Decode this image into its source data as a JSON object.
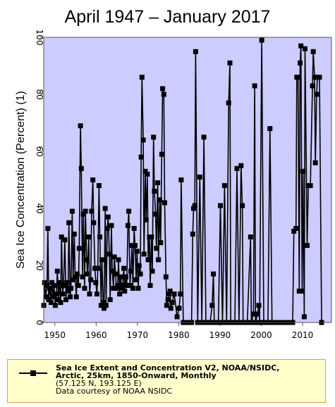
{
  "title": "April 1947 – January 2017",
  "chart_data": {
    "type": "line",
    "ylabel": "Sea Ice Concentration (Percent) (1)",
    "xlabel": "",
    "xlim": [
      1947.3,
      2017.0
    ],
    "ylim": [
      0,
      100
    ],
    "x_ticks": [
      1950,
      1960,
      1970,
      1980,
      1990,
      2000,
      2010
    ],
    "y_ticks": [
      0,
      20,
      40,
      60,
      80,
      100
    ],
    "grid": false,
    "plot_background": "#ccccff",
    "line_color": "#000000",
    "legend_position": "bottom",
    "series": [
      {
        "name": "Sea Ice Extent and Concentration V2, NOAA/NSIDC, Arctic, 25km, 1850-Onward, Monthly",
        "points": [
          [
            1947.3,
            6
          ],
          [
            1947.5,
            14
          ],
          [
            1947.8,
            9
          ],
          [
            1948.1,
            13
          ],
          [
            1948.3,
            33
          ],
          [
            1948.5,
            8
          ],
          [
            1948.8,
            12
          ],
          [
            1949.1,
            7
          ],
          [
            1949.3,
            14
          ],
          [
            1949.6,
            9
          ],
          [
            1949.8,
            13
          ],
          [
            1950.1,
            6
          ],
          [
            1950.4,
            10
          ],
          [
            1950.6,
            18
          ],
          [
            1950.9,
            8
          ],
          [
            1951.1,
            14
          ],
          [
            1951.4,
            7
          ],
          [
            1951.6,
            30
          ],
          [
            1951.9,
            10
          ],
          [
            1952.1,
            13
          ],
          [
            1952.4,
            29
          ],
          [
            1952.7,
            8
          ],
          [
            1952.9,
            14
          ],
          [
            1953.2,
            11
          ],
          [
            1953.4,
            35
          ],
          [
            1953.7,
            9
          ],
          [
            1953.9,
            12
          ],
          [
            1954.2,
            39
          ],
          [
            1954.4,
            15
          ],
          [
            1954.7,
            31
          ],
          [
            1954.9,
            16
          ],
          [
            1955.2,
            9
          ],
          [
            1955.4,
            17
          ],
          [
            1955.7,
            13
          ],
          [
            1955.9,
            26
          ],
          [
            1956.2,
            69
          ],
          [
            1956.4,
            54
          ],
          [
            1956.7,
            16
          ],
          [
            1956.9,
            38
          ],
          [
            1957.2,
            12
          ],
          [
            1957.4,
            39
          ],
          [
            1957.7,
            22
          ],
          [
            1957.9,
            17
          ],
          [
            1958.2,
            30
          ],
          [
            1958.4,
            10
          ],
          [
            1958.7,
            15
          ],
          [
            1958.9,
            39
          ],
          [
            1959.2,
            50
          ],
          [
            1959.4,
            35
          ],
          [
            1959.7,
            19
          ],
          [
            1959.9,
            14
          ],
          [
            1960.2,
            10
          ],
          [
            1960.4,
            19
          ],
          [
            1960.7,
            48
          ],
          [
            1960.9,
            30
          ],
          [
            1961.2,
            6
          ],
          [
            1961.4,
            22
          ],
          [
            1961.7,
            7
          ],
          [
            1961.9,
            5
          ],
          [
            1962.2,
            40
          ],
          [
            1962.4,
            6
          ],
          [
            1962.7,
            33
          ],
          [
            1962.9,
            37
          ],
          [
            1963.2,
            24
          ],
          [
            1963.4,
            8
          ],
          [
            1963.7,
            34
          ],
          [
            1963.9,
            18
          ],
          [
            1964.2,
            12
          ],
          [
            1964.4,
            23
          ],
          [
            1964.7,
            17
          ],
          [
            1964.9,
            12
          ],
          [
            1965.2,
            13
          ],
          [
            1965.4,
            22
          ],
          [
            1965.7,
            10
          ],
          [
            1965.9,
            16
          ],
          [
            1966.2,
            12
          ],
          [
            1966.4,
            13
          ],
          [
            1966.7,
            19
          ],
          [
            1966.9,
            11
          ],
          [
            1967.2,
            16
          ],
          [
            1967.4,
            13
          ],
          [
            1967.7,
            34
          ],
          [
            1967.9,
            39
          ],
          [
            1968.2,
            13
          ],
          [
            1968.4,
            18
          ],
          [
            1968.7,
            27
          ],
          [
            1968.9,
            12
          ],
          [
            1969.2,
            33
          ],
          [
            1969.4,
            27
          ],
          [
            1969.7,
            15
          ],
          [
            1969.9,
            25
          ],
          [
            1970.2,
            12
          ],
          [
            1970.4,
            20
          ],
          [
            1970.7,
            17
          ],
          [
            1970.9,
            58
          ],
          [
            1971.1,
            86
          ],
          [
            1971.4,
            64
          ],
          [
            1971.6,
            24
          ],
          [
            1971.9,
            53
          ],
          [
            1972.1,
            36
          ],
          [
            1972.4,
            52
          ],
          [
            1972.6,
            22
          ],
          [
            1972.9,
            30
          ],
          [
            1973.1,
            13
          ],
          [
            1973.4,
            30
          ],
          [
            1973.6,
            18
          ],
          [
            1973.9,
            65
          ],
          [
            1974.1,
            46
          ],
          [
            1974.4,
            38
          ],
          [
            1974.6,
            26
          ],
          [
            1974.9,
            49
          ],
          [
            1975.1,
            22
          ],
          [
            1975.4,
            43
          ],
          [
            1975.6,
            28
          ],
          [
            1975.9,
            59
          ],
          [
            1976.1,
            82
          ],
          [
            1976.4,
            80
          ],
          [
            1976.6,
            42
          ],
          [
            1976.9,
            16
          ],
          [
            1977.1,
            6
          ],
          [
            1977.4,
            8
          ],
          [
            1977.6,
            10
          ],
          [
            1977.9,
            11
          ],
          [
            1978.1,
            5
          ],
          [
            1978.4,
            7
          ],
          [
            1978.9,
            10
          ],
          [
            1979.6,
            2
          ],
          [
            1980.1,
            5
          ],
          [
            1980.4,
            10
          ],
          [
            1980.6,
            50
          ],
          [
            1981.1,
            0
          ],
          [
            1982.1,
            0
          ],
          [
            1983.1,
            0
          ],
          [
            1983.4,
            31
          ],
          [
            1983.6,
            40
          ],
          [
            1983.9,
            41
          ],
          [
            1984.1,
            95
          ],
          [
            1984.6,
            0
          ],
          [
            1985.1,
            51
          ],
          [
            1985.6,
            0
          ],
          [
            1986.1,
            65
          ],
          [
            1986.6,
            0
          ],
          [
            1987.6,
            0
          ],
          [
            1988.1,
            6
          ],
          [
            1988.4,
            17
          ],
          [
            1988.6,
            0
          ],
          [
            1989.6,
            0
          ],
          [
            1990.1,
            41
          ],
          [
            1990.6,
            0
          ],
          [
            1991.1,
            48
          ],
          [
            1991.6,
            0
          ],
          [
            1992.1,
            77
          ],
          [
            1992.4,
            91
          ],
          [
            1992.6,
            0
          ],
          [
            1993.6,
            0
          ],
          [
            1994.1,
            54
          ],
          [
            1994.6,
            0
          ],
          [
            1995.1,
            55
          ],
          [
            1995.4,
            41
          ],
          [
            1995.6,
            0
          ],
          [
            1996.6,
            0
          ],
          [
            1997.4,
            30
          ],
          [
            1997.6,
            0
          ],
          [
            1998.1,
            3
          ],
          [
            1998.4,
            83
          ],
          [
            1998.6,
            0
          ],
          [
            1999.1,
            3
          ],
          [
            1999.4,
            6
          ],
          [
            1999.6,
            0
          ],
          [
            2000.1,
            99
          ],
          [
            2000.6,
            0
          ],
          [
            2001.6,
            0
          ],
          [
            2002.1,
            68
          ],
          [
            2002.6,
            0
          ],
          [
            2003.6,
            0
          ],
          [
            2004.6,
            0
          ],
          [
            2005.6,
            0
          ],
          [
            2006.6,
            0
          ],
          [
            2007.6,
            0
          ],
          [
            2007.9,
            32
          ],
          [
            2008.4,
            33
          ],
          [
            2008.6,
            86
          ],
          [
            2008.9,
            86
          ],
          [
            2009.2,
            11
          ],
          [
            2009.4,
            91
          ],
          [
            2009.6,
            97
          ],
          [
            2009.9,
            11
          ],
          [
            2010.1,
            53
          ],
          [
            2010.4,
            2
          ],
          [
            2010.6,
            96
          ],
          [
            2011.1,
            27
          ],
          [
            2011.4,
            48
          ],
          [
            2011.9,
            48
          ],
          [
            2012.4,
            83
          ],
          [
            2012.6,
            95
          ],
          [
            2012.9,
            86
          ],
          [
            2013.1,
            56
          ],
          [
            2013.4,
            80
          ],
          [
            2013.6,
            86
          ],
          [
            2014.1,
            86
          ],
          [
            2014.6,
            0
          ]
        ]
      }
    ]
  },
  "legend": {
    "line1": "Sea Ice Extent and Concentration V2, NOAA/NSIDC,",
    "line2": "Arctic, 25km, 1850-Onward, Monthly",
    "line3": "(57.125 N, 193.125 E)",
    "line4": "Data courtesy of NOAA NSIDC"
  }
}
